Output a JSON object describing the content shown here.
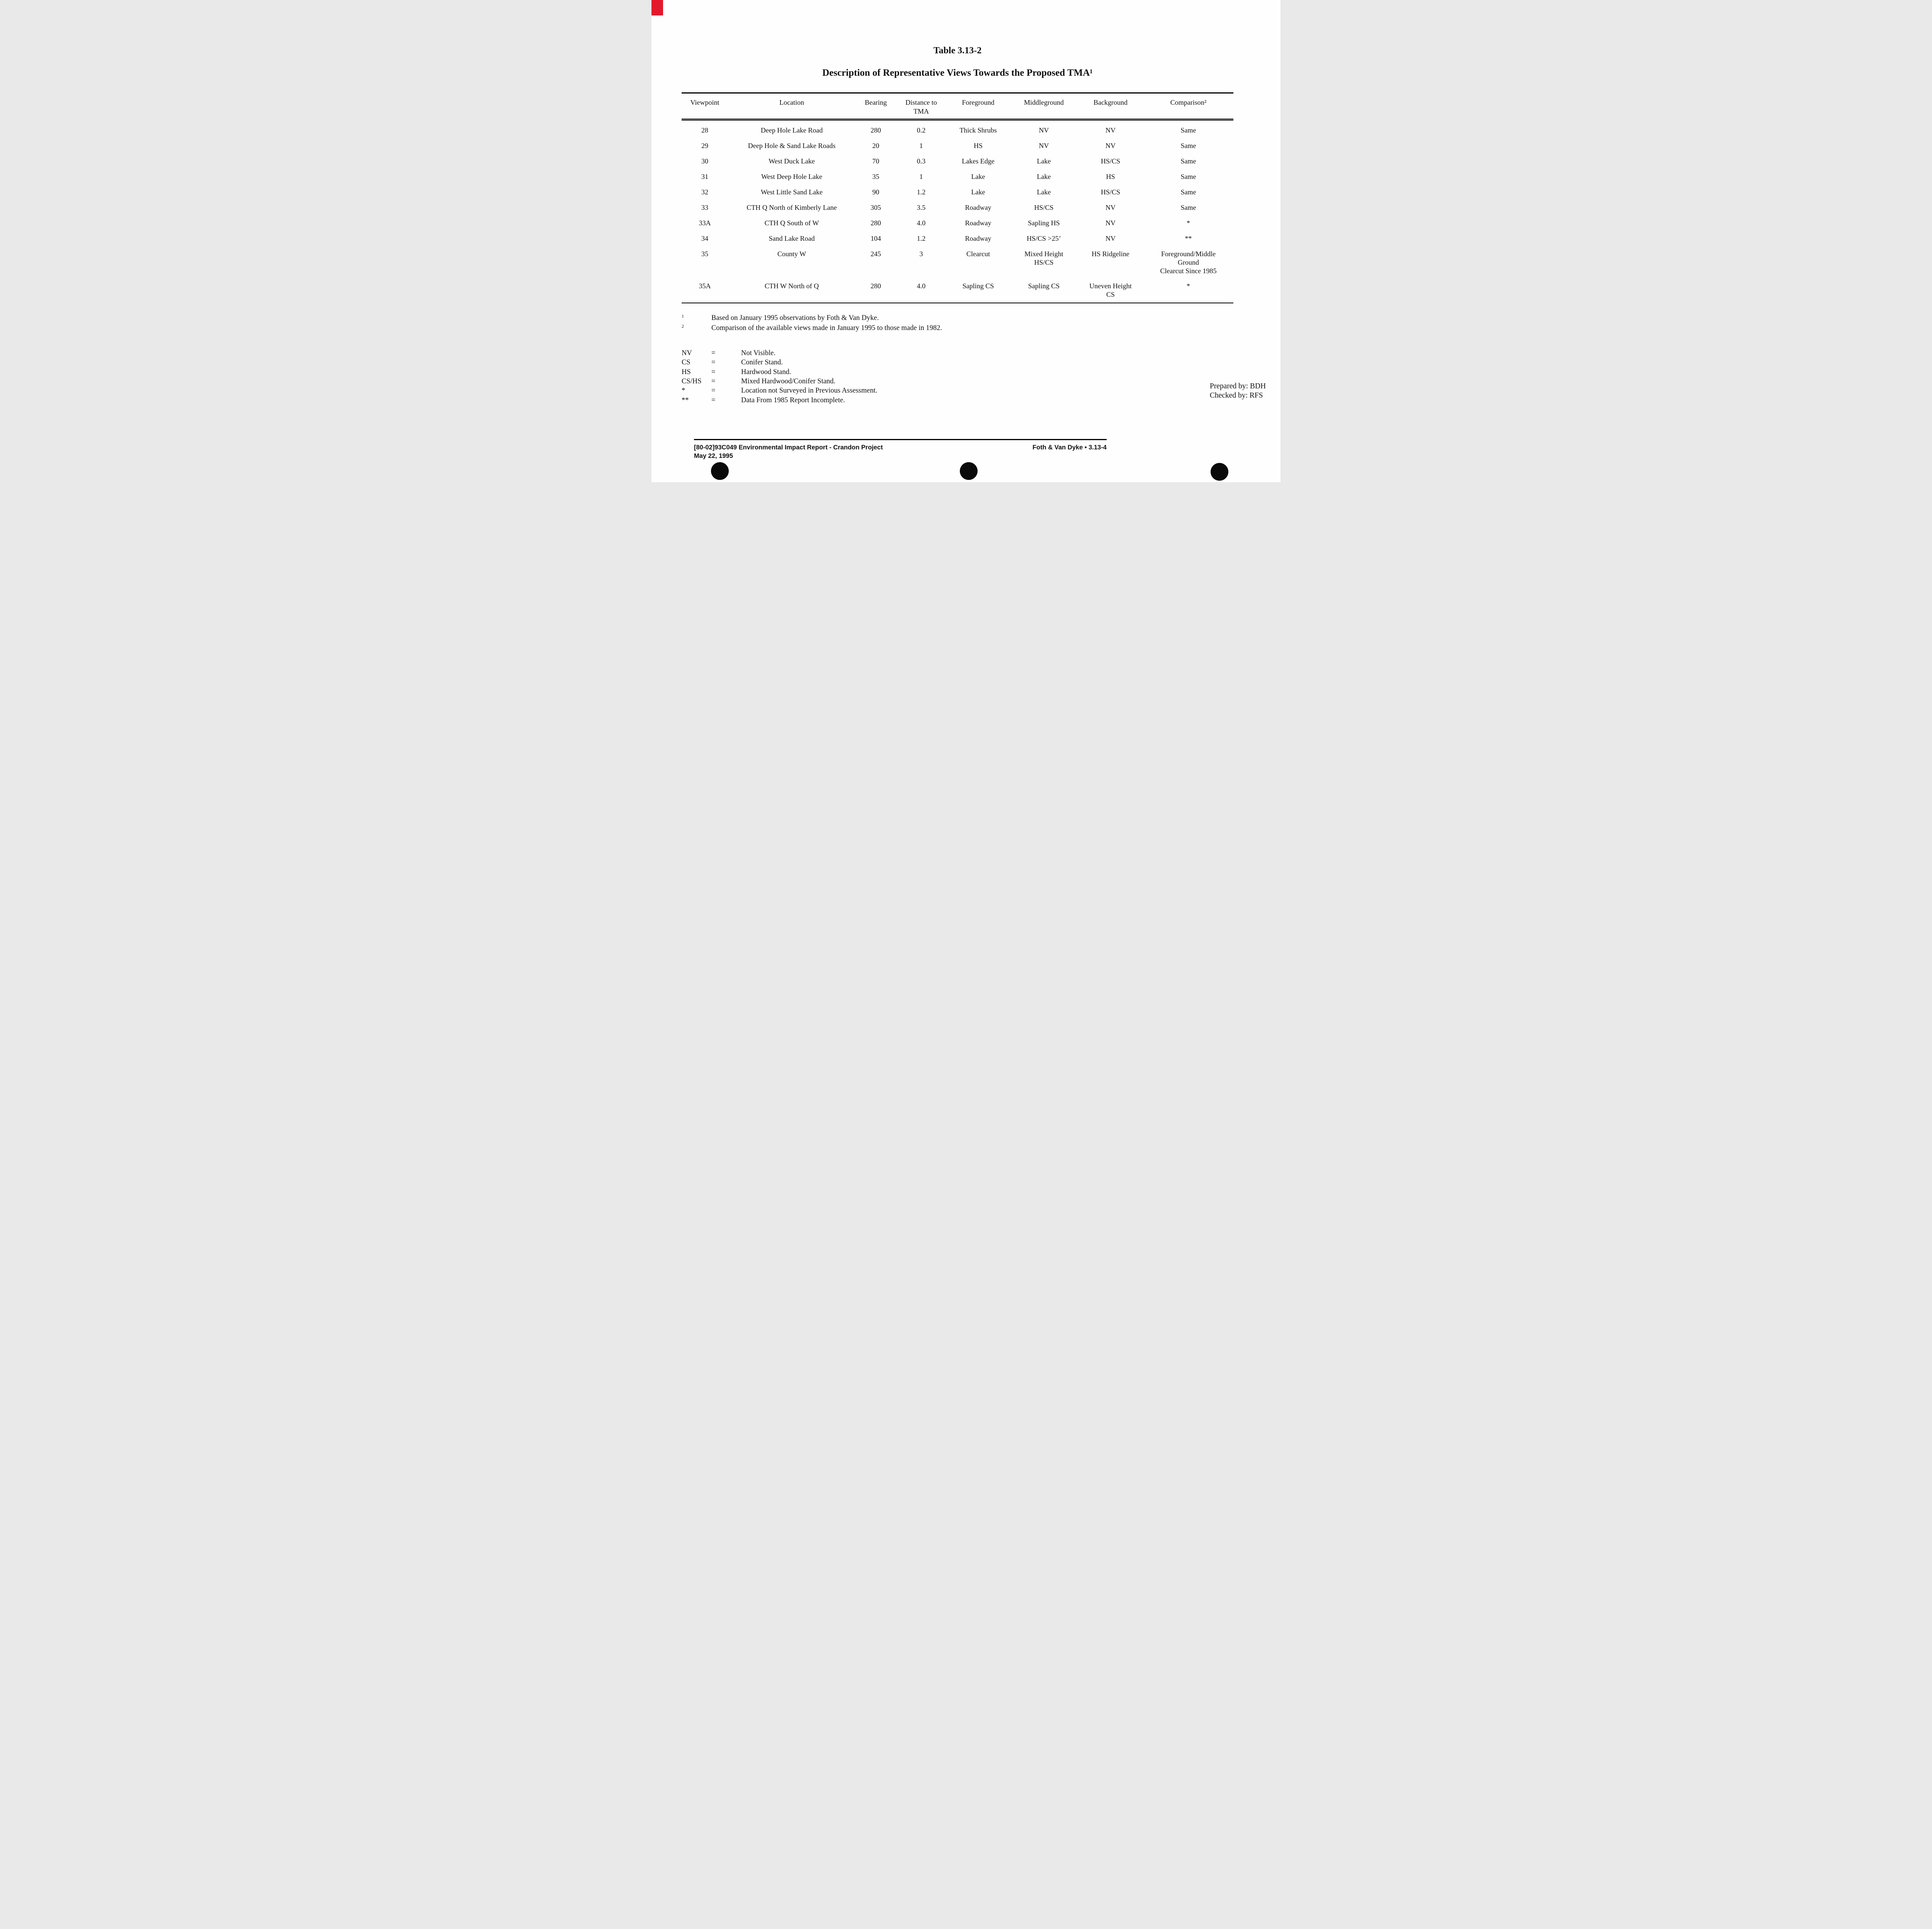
{
  "page": {
    "title": "Table 3.13-2",
    "subtitle": "Description of Representative Views Towards the Proposed TMA¹"
  },
  "table": {
    "headers": [
      "Viewpoint",
      "Location",
      "Bearing",
      "Distance to\nTMA",
      "Foreground",
      "Middleground",
      "Background",
      "Comparison²"
    ],
    "rows": [
      [
        "28",
        "Deep Hole Lake Road",
        "280",
        "0.2",
        "Thick Shrubs",
        "NV",
        "NV",
        "Same"
      ],
      [
        "29",
        "Deep Hole & Sand Lake Roads",
        "20",
        "1",
        "HS",
        "NV",
        "NV",
        "Same"
      ],
      [
        "30",
        "West Duck Lake",
        "70",
        "0.3",
        "Lakes Edge",
        "Lake",
        "HS/CS",
        "Same"
      ],
      [
        "31",
        "West Deep Hole Lake",
        "35",
        "1",
        "Lake",
        "Lake",
        "HS",
        "Same"
      ],
      [
        "32",
        "West Little Sand Lake",
        "90",
        "1.2",
        "Lake",
        "Lake",
        "HS/CS",
        "Same"
      ],
      [
        "33",
        "CTH Q North of Kimberly Lane",
        "305",
        "3.5",
        "Roadway",
        "HS/CS",
        "NV",
        "Same"
      ],
      [
        "33A",
        "CTH Q South of W",
        "280",
        "4.0",
        "Roadway",
        "Sapling HS",
        "NV",
        "*"
      ],
      [
        "34",
        "Sand Lake Road",
        "104",
        "1.2",
        "Roadway",
        "HS/CS >25’",
        "NV",
        "**"
      ],
      [
        "35",
        "County W",
        "245",
        "3",
        "Clearcut",
        "Mixed Height\nHS/CS",
        "HS Ridgeline",
        "Foreground/Middle\nGround\nClearcut Since 1985"
      ],
      [
        "35A",
        "CTH W North of Q",
        "280",
        "4.0",
        "Sapling CS",
        "Sapling CS",
        "Uneven Height\nCS",
        "*"
      ]
    ]
  },
  "footnotes": [
    {
      "marker": "1",
      "text": "Based on January 1995 observations by Foth & Van Dyke."
    },
    {
      "marker": "2",
      "text": "Comparison of the available views made in January 1995 to those made in 1982."
    }
  ],
  "legend": [
    {
      "code": "NV",
      "eq": "=",
      "desc": "Not Visible."
    },
    {
      "code": "CS",
      "eq": "=",
      "desc": "Conifer Stand."
    },
    {
      "code": "HS",
      "eq": "=",
      "desc": "Hardwood Stand."
    },
    {
      "code": "CS/HS",
      "eq": "=",
      "desc": "Mixed Hardwood/Conifer Stand."
    },
    {
      "code": "*",
      "eq": "=",
      "desc": "Location not Surveyed in Previous Assessment."
    },
    {
      "code": "**",
      "eq": "=",
      "desc": "Data From 1985 Report Incomplete."
    }
  ],
  "prepared": {
    "line1": "Prepared by: BDH",
    "line2": "Checked by: RFS"
  },
  "footer": {
    "left_line1": "[80-02]93C049   Environmental Impact Report - Crandon Project",
    "left_line2": "May 22, 1995",
    "right": "Foth & Van Dyke • 3.13-4"
  },
  "artifacts": {
    "red_mark_color": "#e3192d",
    "hole_color": "#0a0a0a"
  }
}
